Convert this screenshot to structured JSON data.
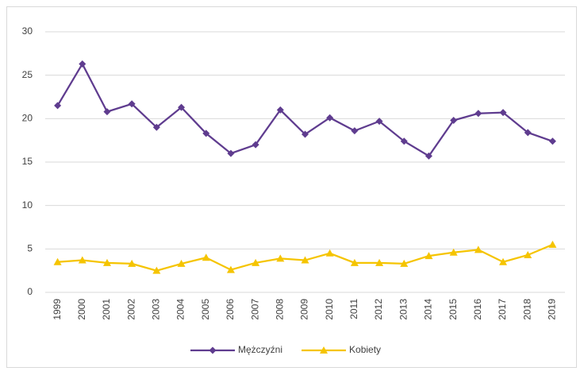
{
  "chart_data": {
    "type": "line",
    "categories": [
      "1999",
      "2000",
      "2001",
      "2002",
      "2003",
      "2004",
      "2005",
      "2006",
      "2007",
      "2008",
      "2009",
      "2010",
      "2011",
      "2012",
      "2013",
      "2014",
      "2015",
      "2016",
      "2017",
      "2018",
      "2019"
    ],
    "series": [
      {
        "name": "Mężczyźni",
        "color": "#5f3c8f",
        "marker": "diamond",
        "values": [
          21.5,
          26.3,
          20.8,
          21.7,
          19.0,
          21.3,
          18.3,
          16.0,
          17.0,
          21.0,
          18.2,
          20.1,
          18.6,
          19.7,
          17.4,
          15.7,
          19.8,
          20.6,
          20.7,
          18.4,
          17.4
        ]
      },
      {
        "name": "Kobiety",
        "color": "#f5c400",
        "marker": "triangle",
        "values": [
          3.5,
          3.7,
          3.4,
          3.3,
          2.5,
          3.3,
          4.0,
          2.6,
          3.4,
          3.9,
          3.7,
          4.5,
          3.4,
          3.4,
          3.3,
          4.2,
          4.6,
          4.9,
          3.5,
          4.3,
          5.5
        ]
      }
    ],
    "ylim": [
      0,
      30
    ],
    "yticks": [
      0,
      5,
      10,
      15,
      20,
      25,
      30
    ],
    "grid": true,
    "legend": "bottom"
  }
}
